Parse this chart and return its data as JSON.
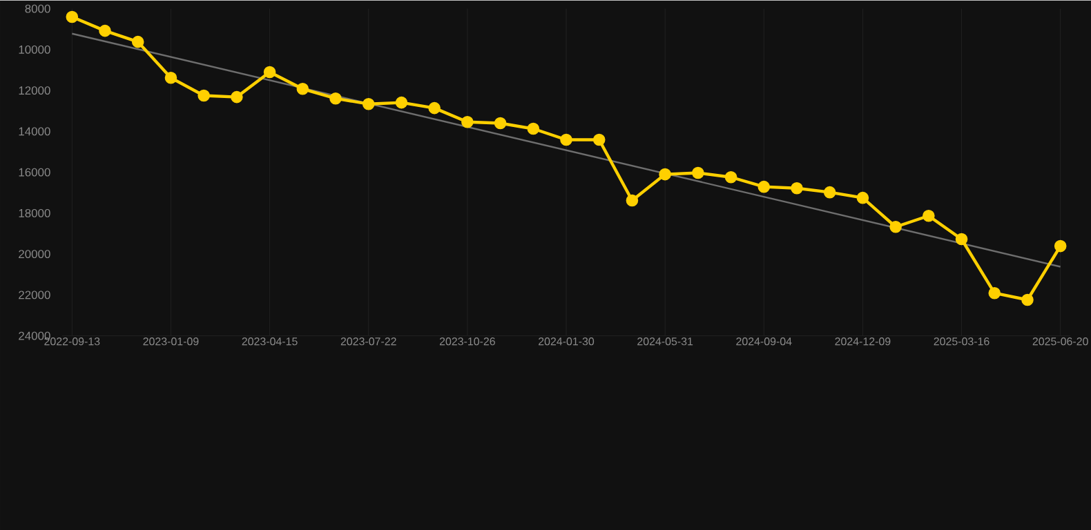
{
  "chart_data": {
    "type": "line",
    "categories": [
      "2022-09-13",
      null,
      null,
      "2023-01-09",
      null,
      null,
      "2023-04-15",
      null,
      null,
      "2023-07-22",
      null,
      null,
      "2023-10-26",
      null,
      null,
      "2024-01-30",
      null,
      null,
      "2024-05-31",
      null,
      null,
      "2024-09-04",
      null,
      null,
      "2024-12-09",
      null,
      null,
      "2025-03-16",
      null,
      null,
      "2025-06-20"
    ],
    "series": [
      {
        "color": "#ffd000",
        "marker": "circle",
        "values": [
          8400,
          9080,
          9620,
          11380,
          12250,
          12320,
          11100,
          11920,
          12390,
          12660,
          12590,
          12860,
          13540,
          13600,
          13870,
          14410,
          14410,
          17380,
          16100,
          16030,
          16240,
          16710,
          16780,
          16980,
          17250,
          18670,
          18130,
          19270,
          21910,
          22240,
          19610
        ]
      },
      {
        "type": "line",
        "color": "#6e6e6e",
        "marker": "none",
        "values": [
          9220,
          null,
          null,
          null,
          null,
          null,
          null,
          null,
          null,
          null,
          null,
          null,
          null,
          null,
          null,
          null,
          null,
          null,
          null,
          null,
          null,
          null,
          null,
          null,
          null,
          null,
          null,
          null,
          null,
          null,
          20620
        ]
      }
    ],
    "ylim": [
      24000,
      8000
    ],
    "yticks": [
      8000,
      10000,
      12000,
      14000,
      16000,
      18000,
      20000,
      22000,
      24000
    ],
    "grid": true
  }
}
